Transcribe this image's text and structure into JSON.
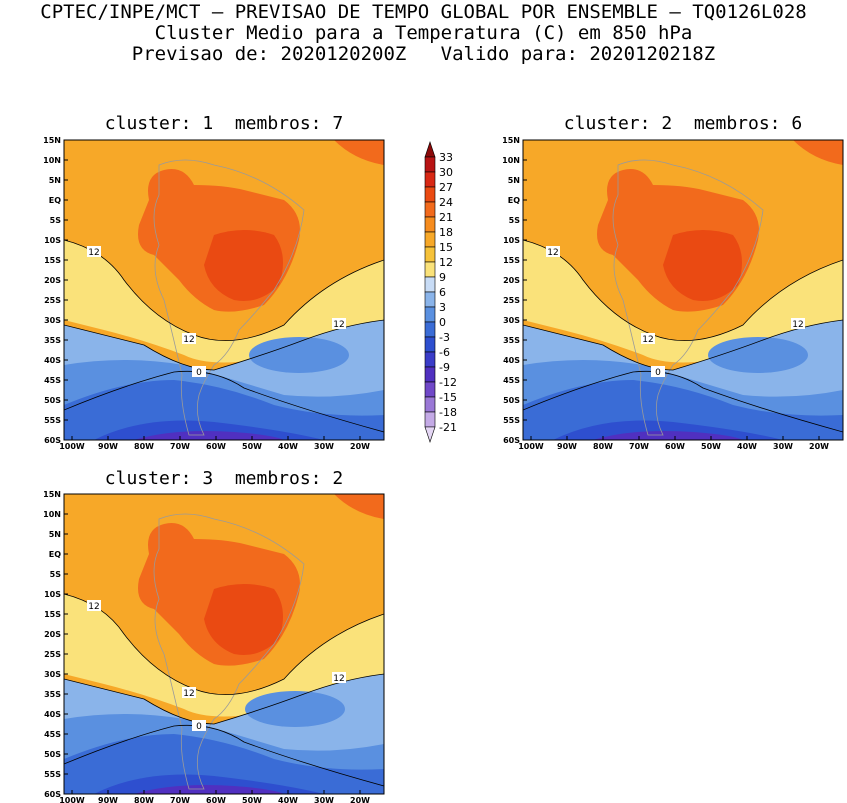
{
  "header": {
    "line1": "CPTEC/INPE/MCT — PREVISAO DE TEMPO GLOBAL POR ENSEMBLE — TQ0126L028",
    "line2": "Cluster Medio para a Temperatura (C) em 850 hPa",
    "line3": "Previsao de: 2020120200Z   Valido para: 2020120218Z"
  },
  "panels": [
    {
      "title": "cluster: 1  membros: 7"
    },
    {
      "title": "cluster: 2  membros: 6"
    },
    {
      "title": "cluster: 3  membros: 2"
    }
  ],
  "lat_ticks": [
    "15N",
    "10N",
    "5N",
    "EQ",
    "5S",
    "10S",
    "15S",
    "20S",
    "25S",
    "30S",
    "35S",
    "40S",
    "45S",
    "50S",
    "55S",
    "60S"
  ],
  "lon_ticks": [
    "100W",
    "90W",
    "80W",
    "70W",
    "60W",
    "50W",
    "40W",
    "30W",
    "20W"
  ],
  "contour_labels": [
    "12",
    "12",
    "12",
    "0"
  ],
  "colorbar": {
    "levels": [
      "33",
      "30",
      "27",
      "24",
      "21",
      "18",
      "15",
      "12",
      "9",
      "6",
      "3",
      "0",
      "-3",
      "-6",
      "-9",
      "-12",
      "-15",
      "-18",
      "-21"
    ],
    "colors": [
      "#8b0a0a",
      "#b81414",
      "#d82814",
      "#ea4a12",
      "#f26a1c",
      "#f68c1e",
      "#f7a828",
      "#f6c23a",
      "#fae27a",
      "#c8dcf6",
      "#8ab4ea",
      "#5a90e0",
      "#3a6cd6",
      "#2e4fcf",
      "#3a3cc8",
      "#5030c0",
      "#7048c8",
      "#9a78d6",
      "#c4aae6",
      "#e4d6f4"
    ]
  },
  "palette": {
    "warm3": "#ea4a12",
    "warm2": "#f26a1c",
    "warm1": "#f68c1e",
    "orange": "#f7a828",
    "yellow": "#fae27a",
    "lightblue": "#8ab4ea",
    "blue": "#5a90e0",
    "darkblue": "#3a6cd6",
    "navy": "#2e4fcf",
    "purple": "#5030c0"
  }
}
